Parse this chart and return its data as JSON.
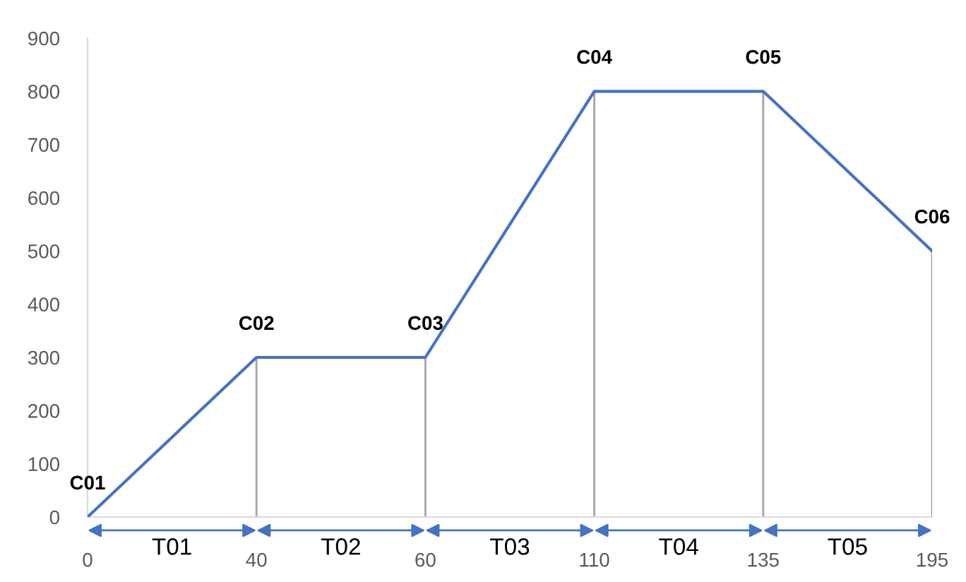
{
  "chart_data": {
    "type": "line",
    "categories": [
      "0",
      "40",
      "60",
      "110",
      "135",
      "195"
    ],
    "series": [
      {
        "type": "bar",
        "color": "#a6a6a6",
        "values": [
          0,
          300,
          300,
          800,
          800,
          500
        ]
      },
      {
        "color": "#4472c4",
        "values": [
          0,
          300,
          300,
          800,
          800,
          500
        ]
      }
    ],
    "ylim": [
      0,
      900
    ],
    "yticks": [
      0,
      100,
      200,
      300,
      400,
      500,
      600,
      700,
      800,
      900
    ],
    "grid": false,
    "legend": false,
    "marker": "none",
    "line_style": "solid",
    "annotations": [
      {
        "text": "C01",
        "x": "0",
        "y": 0
      },
      {
        "text": "C02",
        "x": "40",
        "y": 300
      },
      {
        "text": "C03",
        "x": "60",
        "y": 300
      },
      {
        "text": "C04",
        "x": "110",
        "y": 800
      },
      {
        "text": "C05",
        "x": "135",
        "y": 800
      },
      {
        "text": "C06",
        "x": "195",
        "y": 500
      },
      "T01",
      "T02",
      "T03",
      "T04",
      "T05"
    ]
  }
}
